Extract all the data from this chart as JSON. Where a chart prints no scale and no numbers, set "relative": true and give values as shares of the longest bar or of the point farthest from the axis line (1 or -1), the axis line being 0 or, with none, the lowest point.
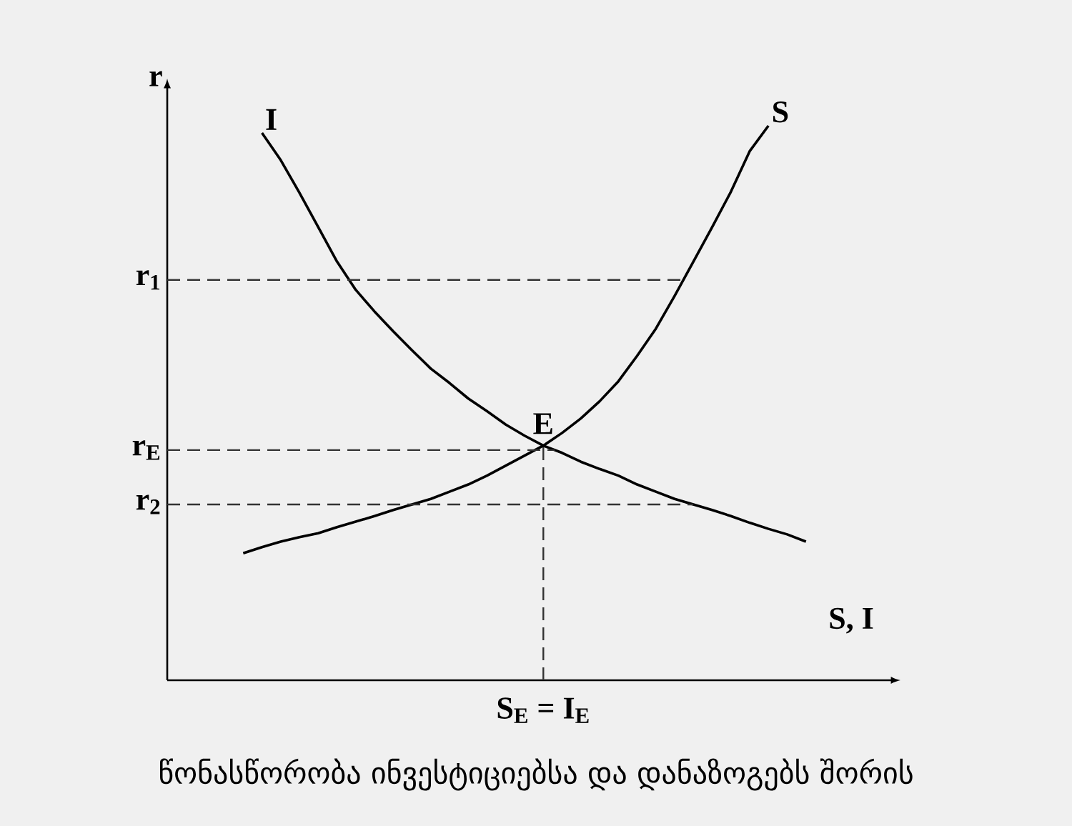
{
  "chart_data": {
    "type": "line",
    "relative": true,
    "xlabel": "S, I",
    "ylabel": "r",
    "marker": "none",
    "line_style": "solid",
    "categories": [
      null,
      null,
      null,
      null,
      null,
      null,
      null,
      null,
      null,
      null,
      null,
      null,
      null,
      null,
      null,
      null,
      null,
      null,
      null,
      null,
      null,
      null,
      null,
      null,
      null,
      null,
      null,
      null,
      null,
      null,
      null
    ],
    "series": [
      {
        "name": "I",
        "color": "#000000",
        "values": [
          null,
          0.987,
          0.938,
          0.879,
          0.817,
          0.755,
          0.704,
          0.665,
          0.629,
          0.595,
          0.562,
          0.536,
          0.508,
          0.485,
          0.461,
          0.441,
          0.423,
          0.41,
          0.394,
          0.381,
          0.369,
          0.353,
          0.34,
          0.327,
          0.317,
          0.307,
          0.296,
          0.284,
          0.273,
          0.263,
          0.25
        ]
      },
      {
        "name": "S",
        "color": "#000000",
        "values": [
          0.229,
          0.24,
          0.25,
          0.258,
          0.265,
          0.276,
          0.286,
          0.296,
          0.307,
          0.317,
          0.327,
          0.34,
          0.353,
          0.369,
          0.387,
          0.405,
          0.423,
          0.446,
          0.472,
          0.503,
          0.539,
          0.585,
          0.634,
          0.693,
          0.755,
          0.817,
          0.881,
          0.954,
          1.0,
          null,
          null
        ]
      }
    ],
    "ref_lines": [
      {
        "axis": "y",
        "value": 0.722,
        "label": "r$_{1}$",
        "color": "#333333",
        "line_style": "dashed"
      },
      {
        "axis": "y",
        "value": 0.415,
        "label": "r$_{E}$",
        "color": "#333333",
        "line_style": "dashed"
      },
      {
        "axis": "y",
        "value": 0.317,
        "label": "r$_{2}$",
        "color": "#333333",
        "line_style": "dashed"
      }
    ],
    "annotations": [
      {
        "text": "E",
        "y": 0.423
      },
      "S$_{E}$ = I$_{E}$",
      "წონასწორობა ინვესტიციებსა და დანაზოგებს შორის"
    ]
  }
}
